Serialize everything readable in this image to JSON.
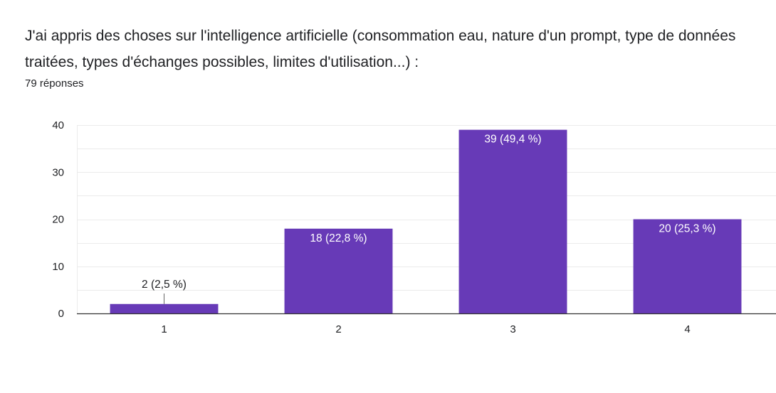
{
  "question": "J'ai appris des choses sur l'intelligence artificielle (consommation eau, nature d'un prompt, type de données traitées, types d'échanges possibles, limites d'utilisation...) :",
  "response_count": "79 réponses",
  "colors": {
    "bar": "#673ab7",
    "grid": "#ebebeb",
    "axis": "#333333",
    "label_inside": "#ffffff",
    "label_outside": "#202124"
  },
  "chart_data": {
    "type": "bar",
    "categories": [
      "1",
      "2",
      "3",
      "4"
    ],
    "values": [
      2,
      18,
      39,
      20
    ],
    "data_labels": [
      "2 (2,5 %)",
      "18 (22,8 %)",
      "39 (49,4 %)",
      "20 (25,3 %)"
    ],
    "ylim": [
      0,
      40
    ],
    "yticks": [
      0,
      10,
      20,
      30,
      40
    ],
    "grid": true,
    "title": "",
    "xlabel": "",
    "ylabel": ""
  }
}
